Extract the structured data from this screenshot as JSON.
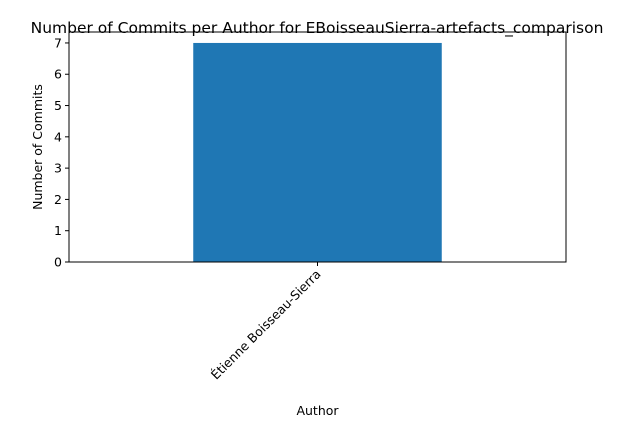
{
  "chart_data": {
    "type": "bar",
    "title": "Number of Commits per Author for EBoisseauSierra-artefacts_comparison",
    "xlabel": "Author",
    "ylabel": "Number of Commits",
    "categories": [
      "Étienne Boisseau-Sierra"
    ],
    "values": [
      7
    ],
    "ylim": [
      0,
      7.35
    ],
    "yticks": [
      0,
      1,
      2,
      3,
      4,
      5,
      6,
      7
    ],
    "bar_color": "#1f77b4",
    "grid": false,
    "legend": "none"
  }
}
